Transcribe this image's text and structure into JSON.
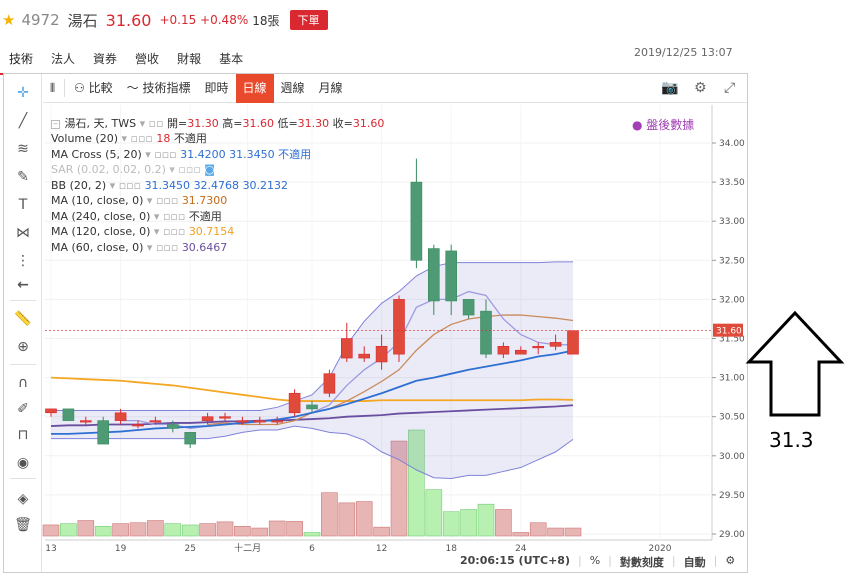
{
  "header": {
    "code": "4972",
    "name": "湯石",
    "price": "31.60",
    "change": "+0.15 +0.48%",
    "volume": "18張",
    "order_button": "下單"
  },
  "tabs": [
    "技術",
    "法人",
    "資券",
    "營收",
    "財報",
    "基本"
  ],
  "timestamp": "2019/12/25 13:07",
  "toolbar": {
    "compare": "比較",
    "indicators": "技術指標",
    "periods": [
      "即時",
      "日線",
      "週線",
      "月線"
    ],
    "active_period": "日線"
  },
  "legend": {
    "title": "湯石, 天, TWS",
    "ohlc": {
      "open_label": "開=",
      "open": "31.30",
      "high_label": "高=",
      "high": "31.60",
      "low_label": "低=",
      "low": "31.30",
      "close_label": "收=",
      "close": "31.60"
    },
    "rows": [
      {
        "label": "Volume (20)",
        "v1": "18",
        "v2": "不適用"
      },
      {
        "label": "MA Cross (5, 20)",
        "v1": "31.4200",
        "v2": "31.3450",
        "v3": "不適用"
      },
      {
        "label": "SAR (0.02, 0.02, 0.2)"
      },
      {
        "label": "BB (20, 2)",
        "v1": "31.3450",
        "v2": "32.4768",
        "v3": "30.2132"
      },
      {
        "label": "MA (10, close, 0)",
        "v1": "31.7300"
      },
      {
        "label": "MA (240, close, 0)",
        "v1": "不適用"
      },
      {
        "label": "MA (120, close, 0)",
        "v1": "30.7154"
      },
      {
        "label": "MA (60, close, 0)",
        "v1": "30.6467"
      }
    ],
    "after_hours": "盤後數據"
  },
  "price_axis": [
    "34.00",
    "33.50",
    "33.00",
    "32.50",
    "32.00",
    "31.50",
    "31.00",
    "30.50",
    "30.00",
    "29.50",
    "29.00"
  ],
  "last_price_tag": "31.60",
  "date_axis": [
    "13",
    "19",
    "25",
    "十二月",
    "6",
    "12",
    "18",
    "24",
    "2020"
  ],
  "bottom_bar": {
    "time": "20:06:15 (UTC+8)",
    "percent": "%",
    "log": "對數刻度",
    "auto": "自動"
  },
  "annotation": "31.3",
  "colors": {
    "up": "#d9282f",
    "down": "#3a8a5e"
  },
  "chart_data": {
    "type": "candlestick",
    "x": [
      "11/13",
      "11/14",
      "11/15",
      "11/18",
      "11/19",
      "11/20",
      "11/21",
      "11/22",
      "11/25",
      "11/26",
      "11/27",
      "11/28",
      "11/29",
      "12/2",
      "12/3",
      "12/4",
      "12/5",
      "12/6",
      "12/9",
      "12/10",
      "12/11",
      "12/12",
      "12/13",
      "12/16",
      "12/17",
      "12/18",
      "12/19",
      "12/20",
      "12/23",
      "12/24",
      "12/25"
    ],
    "open": [
      30.55,
      30.6,
      30.45,
      30.45,
      30.45,
      30.4,
      30.45,
      30.4,
      30.3,
      30.45,
      30.5,
      30.45,
      30.45,
      30.45,
      30.55,
      30.65,
      30.8,
      31.25,
      31.25,
      31.2,
      31.3,
      33.5,
      32.65,
      32.62,
      32.0,
      31.85,
      31.3,
      31.3,
      31.38,
      31.4,
      31.3
    ],
    "close": [
      30.6,
      30.45,
      30.45,
      30.15,
      30.55,
      30.4,
      30.45,
      30.35,
      30.15,
      30.5,
      30.5,
      30.45,
      30.45,
      30.45,
      30.8,
      30.6,
      31.05,
      31.5,
      31.3,
      31.4,
      32.0,
      32.5,
      31.98,
      31.98,
      31.8,
      31.3,
      31.4,
      31.35,
      31.4,
      31.45,
      31.6
    ],
    "high": [
      30.6,
      30.6,
      30.5,
      30.5,
      30.6,
      30.45,
      30.5,
      30.45,
      30.3,
      30.55,
      30.55,
      30.5,
      30.5,
      30.5,
      30.85,
      30.7,
      31.1,
      31.7,
      31.4,
      31.55,
      32.05,
      33.8,
      32.7,
      32.7,
      32.0,
      32.0,
      31.45,
      31.4,
      31.45,
      31.55,
      31.6
    ],
    "low": [
      30.5,
      30.45,
      30.4,
      30.15,
      30.4,
      30.35,
      30.4,
      30.3,
      30.1,
      30.4,
      30.45,
      30.4,
      30.4,
      30.4,
      30.5,
      30.55,
      30.75,
      31.2,
      31.2,
      31.1,
      31.2,
      32.4,
      31.8,
      31.8,
      31.75,
      31.25,
      31.25,
      31.3,
      31.3,
      31.35,
      31.3
    ],
    "volume": [
      25,
      28,
      35,
      22,
      28,
      30,
      35,
      28,
      25,
      28,
      32,
      22,
      18,
      34,
      33,
      8,
      98,
      75,
      78,
      20,
      215,
      240,
      105,
      55,
      60,
      72,
      60,
      8,
      30,
      18,
      18
    ],
    "bb_upper": [
      30.58,
      30.58,
      30.58,
      30.58,
      30.58,
      30.58,
      30.58,
      30.58,
      30.58,
      30.58,
      30.58,
      30.58,
      30.58,
      30.62,
      30.7,
      30.78,
      31.0,
      31.42,
      31.72,
      31.95,
      32.1,
      32.3,
      32.42,
      32.47,
      32.47,
      32.47,
      32.47,
      32.47,
      32.47,
      32.48,
      32.48
    ],
    "bb_lower": [
      30.22,
      30.22,
      30.22,
      30.22,
      30.22,
      30.22,
      30.22,
      30.22,
      30.22,
      30.22,
      30.25,
      30.3,
      30.33,
      30.33,
      30.38,
      30.35,
      30.3,
      30.28,
      30.2,
      30.05,
      29.95,
      29.82,
      29.72,
      29.71,
      29.75,
      29.75,
      29.8,
      29.85,
      29.95,
      30.05,
      30.21
    ],
    "ma10": [
      null,
      null,
      null,
      null,
      null,
      null,
      null,
      null,
      null,
      30.4,
      30.42,
      30.4,
      30.4,
      30.4,
      30.45,
      30.55,
      30.6,
      30.7,
      30.82,
      30.95,
      31.1,
      31.35,
      31.55,
      31.68,
      31.75,
      31.78,
      31.8,
      31.8,
      31.78,
      31.76,
      31.73
    ],
    "ma5": [
      null,
      null,
      null,
      null,
      30.45,
      30.45,
      30.4,
      30.4,
      30.35,
      30.38,
      30.4,
      30.42,
      30.45,
      30.47,
      30.5,
      30.55,
      30.65,
      30.9,
      31.1,
      31.25,
      31.45,
      31.9,
      32.0,
      32.0,
      32.1,
      32.05,
      31.75,
      31.55,
      31.45,
      31.42,
      31.42
    ],
    "ma20": [
      30.28,
      30.28,
      30.29,
      30.3,
      30.31,
      30.33,
      30.35,
      30.36,
      30.37,
      30.38,
      30.4,
      30.42,
      30.44,
      30.46,
      30.5,
      30.55,
      30.6,
      30.66,
      30.73,
      30.8,
      30.88,
      30.96,
      31.0,
      31.05,
      31.1,
      31.14,
      31.18,
      31.22,
      31.27,
      31.3,
      31.345
    ],
    "ma120": [
      31.0,
      30.99,
      30.98,
      30.97,
      30.96,
      30.94,
      30.92,
      30.9,
      30.87,
      30.84,
      30.81,
      30.78,
      30.75,
      30.72,
      30.7,
      30.7,
      30.7,
      30.7,
      30.7,
      30.71,
      30.71,
      30.71,
      30.71,
      30.71,
      30.71,
      30.71,
      30.71,
      30.71,
      30.72,
      30.72,
      30.7154
    ],
    "ma60": [
      30.38,
      30.39,
      30.39,
      30.4,
      30.4,
      30.4,
      30.41,
      30.42,
      30.42,
      30.43,
      30.44,
      30.44,
      30.45,
      30.45,
      30.46,
      30.47,
      30.48,
      30.5,
      30.51,
      30.52,
      30.54,
      30.55,
      30.56,
      30.57,
      30.58,
      30.59,
      30.6,
      30.61,
      30.62,
      30.63,
      30.6467
    ]
  }
}
